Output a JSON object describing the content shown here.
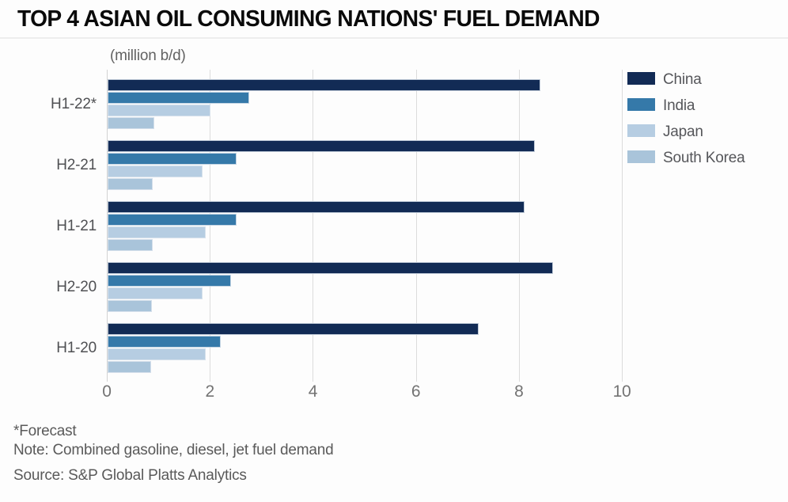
{
  "title": "TOP 4 ASIAN OIL CONSUMING NATIONS' FUEL DEMAND",
  "units_label": "(million b/d)",
  "footer": {
    "forecast_note": "*Forecast",
    "note": "Note: Combined gasoline, diesel, jet fuel demand",
    "source": "Source: S&P Global Platts Analytics"
  },
  "colors": {
    "china": "#122b55",
    "india": "#3579a9",
    "japan": "#b6cde2",
    "south_korea": "#a9c4da",
    "gridline": "#dcdcdc",
    "axis_text": "#737373",
    "label_text": "#4f5053"
  },
  "chart_data": {
    "type": "bar",
    "orientation": "horizontal",
    "title": "TOP 4 ASIAN OIL CONSUMING NATIONS' FUEL DEMAND",
    "xlabel": "(million b/d)",
    "ylabel": "",
    "categories": [
      "H1-22*",
      "H2-21",
      "H1-21",
      "H2-20",
      "H1-20"
    ],
    "series": [
      {
        "name": "China",
        "color": "#122b55",
        "values": [
          8.4,
          8.3,
          8.1,
          8.65,
          7.2
        ]
      },
      {
        "name": "India",
        "color": "#3579a9",
        "values": [
          2.75,
          2.5,
          2.5,
          2.4,
          2.2
        ]
      },
      {
        "name": "Japan",
        "color": "#b6cde2",
        "values": [
          2.0,
          1.85,
          1.9,
          1.85,
          1.9
        ]
      },
      {
        "name": "South Korea",
        "color": "#a9c4da",
        "values": [
          0.9,
          0.88,
          0.87,
          0.86,
          0.85
        ]
      }
    ],
    "xlim": [
      0,
      10
    ],
    "xticks": [
      0,
      2,
      4,
      6,
      8,
      10
    ],
    "grid": "vertical",
    "legend_position": "top-right"
  }
}
